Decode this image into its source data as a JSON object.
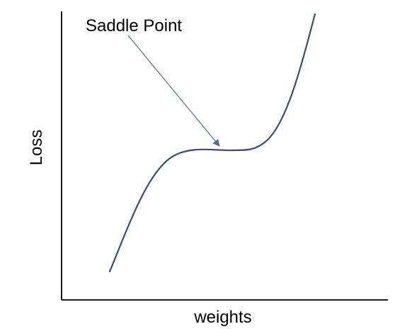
{
  "annotation": {
    "text": "Saddle Point"
  },
  "axes": {
    "x_label": "weights",
    "y_label": "Loss"
  },
  "colors": {
    "axis": "#000000",
    "curve": "#3e4e6e",
    "arrow": "#5a6a8a",
    "text": "#000000"
  }
}
